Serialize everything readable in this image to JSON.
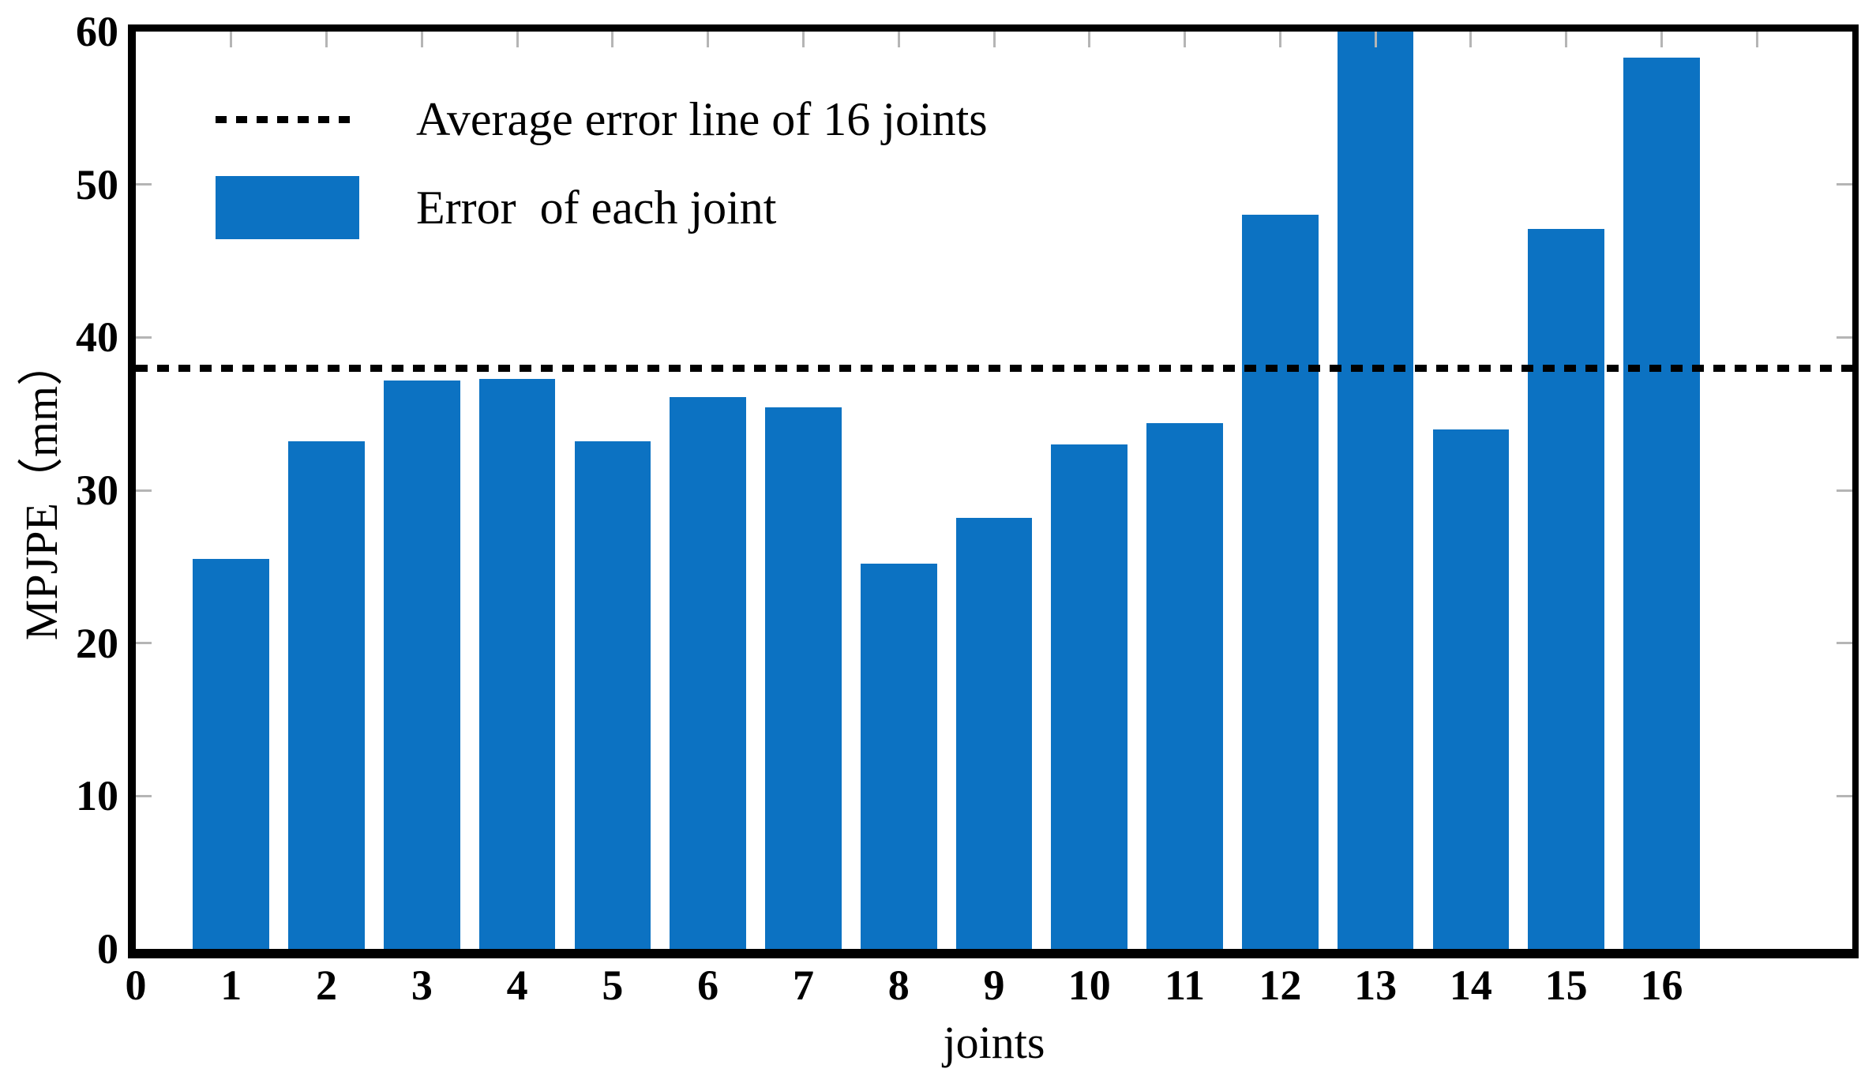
{
  "chart_data": {
    "type": "bar",
    "title": "",
    "xlabel": "joints",
    "ylabel": "MPJPE（mm）",
    "categories": [
      "1",
      "2",
      "3",
      "4",
      "5",
      "6",
      "7",
      "8",
      "9",
      "10",
      "11",
      "12",
      "13",
      "14",
      "15",
      "16"
    ],
    "values": [
      25.5,
      33.2,
      37.2,
      37.3,
      33.2,
      36.1,
      35.4,
      25.2,
      28.2,
      33.0,
      34.4,
      48.0,
      60.0,
      34.0,
      47.1,
      58.3
    ],
    "average_line_value": 38.0,
    "ylim": [
      0,
      60
    ],
    "xlim": [
      0,
      18
    ],
    "yticks": [
      "0",
      "10",
      "20",
      "30",
      "40",
      "50",
      "60"
    ],
    "xticks": [
      "0",
      "1",
      "2",
      "3",
      "4",
      "5",
      "6",
      "7",
      "8",
      "9",
      "10",
      "11",
      "12",
      "13",
      "14",
      "15",
      "16"
    ],
    "grid": false,
    "legend_position": "top-left-inside",
    "legend": [
      {
        "sample": "dashed-line",
        "label": "Average error line of 16 joints"
      },
      {
        "sample": "bar-swatch",
        "label": "Error  of each joint"
      }
    ],
    "colors": {
      "bar": "#0c72c2",
      "average_line": "#000000",
      "axis": "#000000",
      "tick_marks": "#b5b5b5",
      "background": "#ffffff"
    }
  }
}
